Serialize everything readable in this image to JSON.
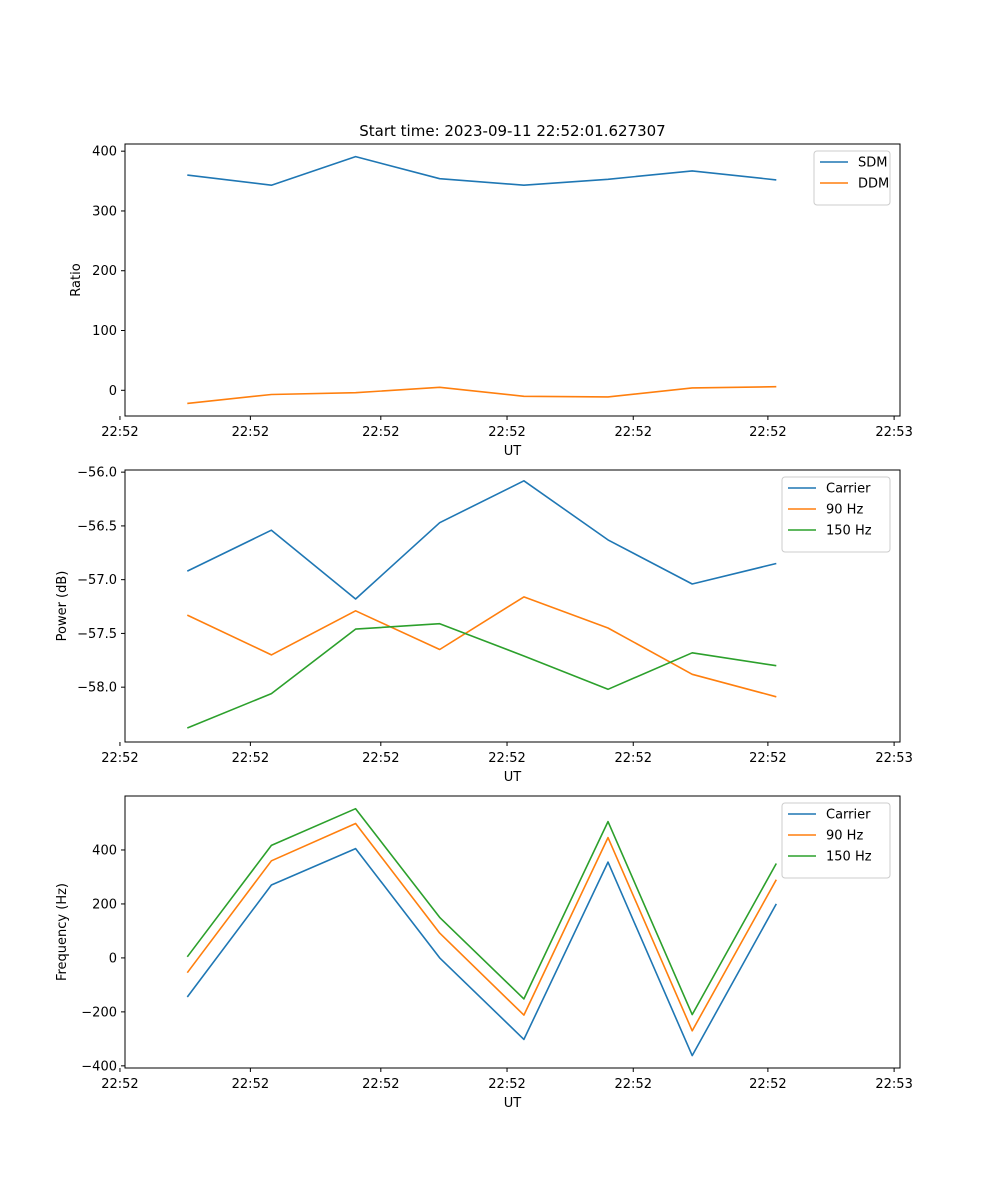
{
  "figure": {
    "title": "Start time: 2023-09-11 22:52:01.627307"
  },
  "chart_data": [
    {
      "type": "line",
      "title": "Start time: 2023-09-11 22:52:01.627307",
      "xlabel": "UT",
      "ylabel": "Ratio",
      "x": [
        1,
        2,
        3,
        4,
        5,
        6,
        7,
        8
      ],
      "xlim": [
        0.26,
        9.47
      ],
      "xticks": [
        0.2,
        1.75,
        3.3,
        4.8,
        6.3,
        7.9,
        9.4
      ],
      "xtick_labels": [
        "22:52",
        "22:52",
        "22:52",
        "22:52",
        "22:52",
        "22:52",
        "22:53"
      ],
      "ylim": [
        -43,
        412
      ],
      "yticks": [
        0,
        100,
        200,
        300,
        400
      ],
      "ytick_labels": [
        "0",
        "100",
        "200",
        "300",
        "400"
      ],
      "legend_position": "top-right",
      "series": [
        {
          "name": "SDM",
          "color": "#1f77b4",
          "values": [
            360,
            343,
            391,
            354,
            343,
            353,
            367,
            352
          ]
        },
        {
          "name": "DDM",
          "color": "#ff7f0e",
          "values": [
            -22,
            -7,
            -4,
            5,
            -10,
            -11,
            4,
            6
          ]
        }
      ]
    },
    {
      "type": "line",
      "title": "",
      "xlabel": "UT",
      "ylabel": "Power (dB)",
      "x": [
        1,
        2,
        3,
        4,
        5,
        6,
        7,
        8
      ],
      "xlim": [
        0.26,
        9.47
      ],
      "xticks": [
        0.2,
        1.75,
        3.3,
        4.8,
        6.3,
        7.9,
        9.4
      ],
      "xtick_labels": [
        "22:52",
        "22:52",
        "22:52",
        "22:52",
        "22:52",
        "22:52",
        "22:53"
      ],
      "ylim": [
        -58.51,
        -55.98
      ],
      "yticks": [
        -58.0,
        -57.5,
        -57.0,
        -56.5,
        -56.0
      ],
      "ytick_labels": [
        "−58.0",
        "−57.5",
        "−57.0",
        "−56.5",
        "−56.0"
      ],
      "legend_position": "top-right",
      "series": [
        {
          "name": "Carrier",
          "color": "#1f77b4",
          "values": [
            -56.92,
            -56.54,
            -57.18,
            -56.47,
            -56.08,
            -56.63,
            -57.04,
            -56.85
          ]
        },
        {
          "name": "90 Hz",
          "color": "#ff7f0e",
          "values": [
            -57.33,
            -57.7,
            -57.29,
            -57.65,
            -57.16,
            -57.45,
            -57.88,
            -58.09
          ]
        },
        {
          "name": "150 Hz",
          "color": "#2ca02c",
          "values": [
            -58.38,
            -58.06,
            -57.46,
            -57.41,
            -57.71,
            -58.02,
            -57.68,
            -57.8
          ]
        }
      ]
    },
    {
      "type": "line",
      "title": "",
      "xlabel": "UT",
      "ylabel": "Frequency (Hz)",
      "x": [
        1,
        2,
        3,
        4,
        5,
        6,
        7,
        8
      ],
      "xlim": [
        0.26,
        9.47
      ],
      "xticks": [
        0.2,
        1.75,
        3.3,
        4.8,
        6.3,
        7.9,
        9.4
      ],
      "xtick_labels": [
        "22:52",
        "22:52",
        "22:52",
        "22:52",
        "22:52",
        "22:52",
        "22:53"
      ],
      "ylim": [
        -408,
        600
      ],
      "yticks": [
        -400,
        -200,
        0,
        200,
        400
      ],
      "ytick_labels": [
        "−400",
        "−200",
        "0",
        "200",
        "400"
      ],
      "legend_position": "top-right",
      "series": [
        {
          "name": "Carrier",
          "color": "#1f77b4",
          "values": [
            -145,
            270,
            405,
            0,
            -302,
            355,
            -362,
            200
          ]
        },
        {
          "name": "90 Hz",
          "color": "#ff7f0e",
          "values": [
            -55,
            360,
            498,
            92,
            -212,
            446,
            -270,
            290
          ]
        },
        {
          "name": "150 Hz",
          "color": "#2ca02c",
          "values": [
            4,
            417,
            553,
            150,
            -152,
            505,
            -210,
            350
          ]
        }
      ]
    }
  ]
}
